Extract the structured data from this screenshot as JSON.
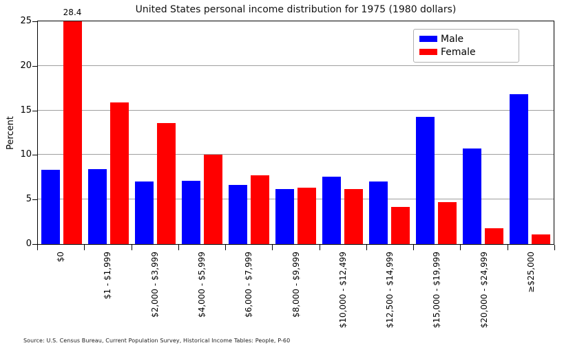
{
  "chart_data": {
    "type": "bar",
    "title": "United States personal income distribution for 1975 (1980 dollars)",
    "ylabel": "Percent",
    "xlabel": "",
    "ylim": [
      0,
      25
    ],
    "yticks": [
      0,
      5,
      10,
      15,
      20,
      25
    ],
    "grid": true,
    "categories": [
      "$0",
      "$1 - $1,999",
      "$2,000 - $3,999",
      "$4,000 - $5,999",
      "$6,000 - $7,999",
      "$8,000 - $9,999",
      "$10,000 - $12,499",
      "$12,500 - $14,999",
      "$15,000 - $19,999",
      "$20,000 - $24,999",
      "≥$25,000"
    ],
    "series": [
      {
        "name": "Male",
        "color": "#0000ff",
        "values": [
          8.3,
          8.4,
          7.0,
          7.1,
          6.6,
          6.2,
          7.6,
          7.0,
          14.3,
          10.7,
          16.8
        ]
      },
      {
        "name": "Female",
        "color": "#ff0000",
        "values": [
          28.4,
          15.9,
          13.6,
          10.0,
          7.7,
          6.3,
          6.2,
          4.2,
          4.7,
          1.8,
          1.1
        ]
      }
    ],
    "legend": {
      "position": "upper right",
      "entries": [
        "Male",
        "Female"
      ]
    },
    "annotations": [
      {
        "text": "28.4",
        "category_index": 0,
        "series": "Female",
        "note": "bar clipped at axis maximum 25"
      }
    ]
  },
  "source_note": "Source: U.S. Census Bureau, Current Population Survey, Historical Income Tables: People, P-60",
  "colors": {
    "male": "#0000ff",
    "female": "#ff0000",
    "grid": "#9e9e9e",
    "spine": "#000000",
    "background": "#ffffff",
    "legend_border": "#b0b0b0",
    "text": "#000000"
  }
}
